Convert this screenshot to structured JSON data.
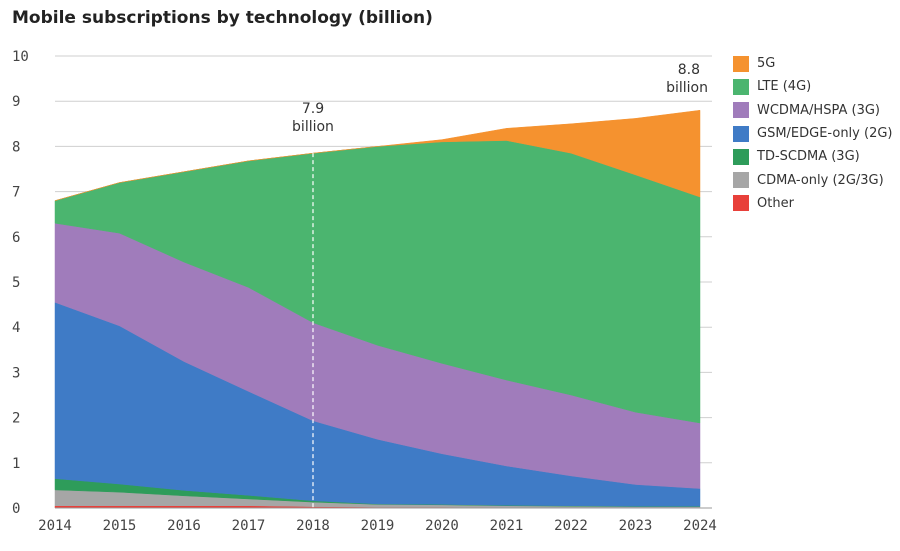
{
  "chart_data": {
    "type": "area",
    "title": "Mobile subscriptions by technology (billion)",
    "x": [
      "2014",
      "2015",
      "2016",
      "2017",
      "2018",
      "2019",
      "2020",
      "2021",
      "2022",
      "2023",
      "2024"
    ],
    "ylim": [
      0,
      10
    ],
    "yticks": [
      0,
      1,
      2,
      3,
      4,
      5,
      6,
      7,
      8,
      9,
      10
    ],
    "grid": true,
    "legend_position": "right",
    "series": [
      {
        "name": "Other",
        "color": "#e8403a",
        "values": [
          0.05,
          0.05,
          0.05,
          0.05,
          0.03,
          0.02,
          0.02,
          0.01,
          0.01,
          0.01,
          0.01
        ]
      },
      {
        "name": "CDMA-only (2G/3G)",
        "color": "#a6a6a6",
        "values": [
          0.35,
          0.3,
          0.22,
          0.15,
          0.1,
          0.06,
          0.05,
          0.04,
          0.03,
          0.02,
          0.02
        ]
      },
      {
        "name": "TD-SCDMA (3G)",
        "color": "#2e9c5a",
        "values": [
          0.25,
          0.18,
          0.12,
          0.08,
          0.03,
          0.01,
          0.01,
          0.01,
          0.01,
          0.01,
          0.01
        ]
      },
      {
        "name": "GSM/EDGE-only (2G)",
        "color": "#3f7bc6",
        "values": [
          3.9,
          3.5,
          2.85,
          2.3,
          1.77,
          1.43,
          1.12,
          0.87,
          0.66,
          0.48,
          0.39
        ]
      },
      {
        "name": "WCDMA/HSPA (3G)",
        "color": "#a07cbb",
        "values": [
          1.75,
          2.05,
          2.2,
          2.3,
          2.17,
          2.08,
          2.0,
          1.9,
          1.79,
          1.6,
          1.45
        ]
      },
      {
        "name": "LTE (4G)",
        "color": "#4bb56f",
        "values": [
          0.5,
          1.12,
          2.0,
          2.8,
          3.75,
          4.4,
          4.9,
          5.3,
          5.35,
          5.25,
          5.0
        ]
      },
      {
        "name": "5G",
        "color": "#f5922f",
        "values": [
          0,
          0,
          0,
          0,
          0,
          0,
          0.05,
          0.27,
          0.65,
          1.25,
          1.92
        ]
      }
    ],
    "annotations": [
      {
        "x": "2018",
        "value_label": "7.9",
        "unit_label": "billion"
      },
      {
        "x": "2024",
        "value_label": "8.8",
        "unit_label": "billion"
      }
    ]
  }
}
